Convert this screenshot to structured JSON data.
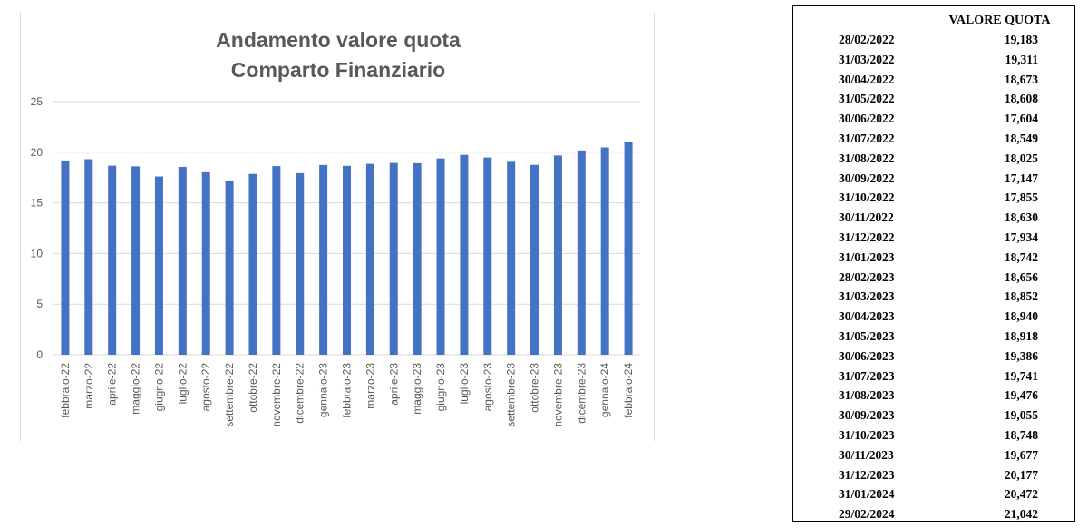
{
  "chart_data": {
    "type": "bar",
    "title_line1": "Andamento valore quota",
    "title_line2": "Comparto Finanziario",
    "xlabel": "",
    "ylabel": "",
    "ylim": [
      0,
      25
    ],
    "yticks": [
      0,
      5,
      10,
      15,
      20,
      25
    ],
    "grid": true,
    "bar_color": "#4472C4",
    "categories": [
      "febbraio-22",
      "marzo-22",
      "aprile-22",
      "maggio-22",
      "giugno-22",
      "luglio-22",
      "agosto-22",
      "settembre-22",
      "ottobre-22",
      "novembre-22",
      "dicembre-22",
      "gennaio-23",
      "febbraio-23",
      "marzo-23",
      "aprile-23",
      "maggio-23",
      "giugno-23",
      "luglio-23",
      "agosto-23",
      "settembre-23",
      "ottobre-23",
      "novembre-23",
      "dicembre-23",
      "gennaio-24",
      "febbraio-24"
    ],
    "values": [
      19.183,
      19.311,
      18.673,
      18.608,
      17.604,
      18.549,
      18.025,
      17.147,
      17.855,
      18.63,
      17.934,
      18.742,
      18.656,
      18.852,
      18.94,
      18.918,
      19.386,
      19.741,
      19.476,
      19.055,
      18.748,
      19.677,
      20.177,
      20.472,
      21.042
    ]
  },
  "table": {
    "header": "VALORE QUOTA",
    "rows": [
      {
        "date": "28/02/2022",
        "value": "19,183"
      },
      {
        "date": "31/03/2022",
        "value": "19,311"
      },
      {
        "date": "30/04/2022",
        "value": "18,673"
      },
      {
        "date": "31/05/2022",
        "value": "18,608"
      },
      {
        "date": "30/06/2022",
        "value": "17,604"
      },
      {
        "date": "31/07/2022",
        "value": "18,549"
      },
      {
        "date": "31/08/2022",
        "value": "18,025"
      },
      {
        "date": "30/09/2022",
        "value": "17,147"
      },
      {
        "date": "31/10/2022",
        "value": "17,855"
      },
      {
        "date": "30/11/2022",
        "value": "18,630"
      },
      {
        "date": "31/12/2022",
        "value": "17,934"
      },
      {
        "date": "31/01/2023",
        "value": "18,742"
      },
      {
        "date": "28/02/2023",
        "value": "18,656"
      },
      {
        "date": "31/03/2023",
        "value": "18,852"
      },
      {
        "date": "30/04/2023",
        "value": "18,940"
      },
      {
        "date": "31/05/2023",
        "value": "18,918"
      },
      {
        "date": "30/06/2023",
        "value": "19,386"
      },
      {
        "date": "31/07/2023",
        "value": "19,741"
      },
      {
        "date": "31/08/2023",
        "value": "19,476"
      },
      {
        "date": "30/09/2023",
        "value": "19,055"
      },
      {
        "date": "31/10/2023",
        "value": "18,748"
      },
      {
        "date": "30/11/2023",
        "value": "19,677"
      },
      {
        "date": "31/12/2023",
        "value": "20,177"
      },
      {
        "date": "31/01/2024",
        "value": "20,472"
      },
      {
        "date": "29/02/2024",
        "value": "21,042"
      }
    ]
  }
}
